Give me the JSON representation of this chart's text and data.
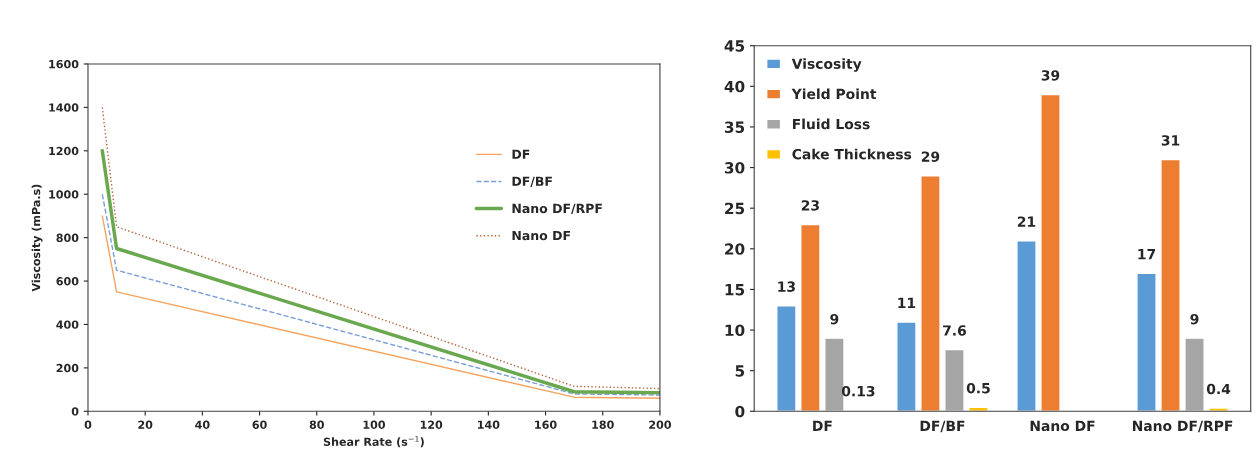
{
  "chart_data": [
    {
      "type": "line",
      "xlabel": "Shear Rate (s$^{−1}$)",
      "ylabel": "Viscosity (mPa.s)",
      "x": [
        5,
        10,
        170,
        200
      ],
      "series": [
        {
          "name": "DF",
          "color": "#f4a460",
          "values": [
            900,
            550,
            65,
            60
          ],
          "line_style": "solid"
        },
        {
          "name": "DF/BF",
          "color": "#7a9fd8",
          "values": [
            1000,
            650,
            80,
            75
          ],
          "line_style": "dashed"
        },
        {
          "name": "Nano DF/RPF",
          "color": "#6aa84f",
          "values": [
            1200,
            750,
            90,
            85
          ],
          "line_style": "solid"
        },
        {
          "name": "Nano DF",
          "color": "#b5653a",
          "values": [
            1400,
            850,
            115,
            105
          ],
          "line_style": "dotted"
        }
      ],
      "xlim": [
        0,
        200
      ],
      "xticks": [
        0,
        20,
        40,
        60,
        80,
        100,
        120,
        140,
        160,
        180,
        200
      ],
      "ylim": [
        0,
        1600
      ],
      "yticks": [
        0,
        200,
        400,
        600,
        800,
        1000,
        1200,
        1400,
        1600
      ],
      "grid": false,
      "legend": "right",
      "marker": "none"
    },
    {
      "type": "bar",
      "categories": [
        "DF",
        "DF/BF",
        "Nano DF",
        "Nano DF/RPF"
      ],
      "series": [
        {
          "name": "Viscosity",
          "color": "#5b9bd5",
          "values": [
            13,
            11,
            21,
            17
          ]
        },
        {
          "name": "Yield Point",
          "color": "#ed7d31",
          "values": [
            23,
            29,
            39,
            31
          ]
        },
        {
          "name": "Fluid Loss",
          "color": "#a5a5a5",
          "values": [
            9,
            7.6,
            null,
            9
          ]
        },
        {
          "name": "Cake Thickness",
          "color": "#ffc000",
          "values": [
            0.13,
            0.5,
            null,
            0.4
          ]
        }
      ],
      "ylim": [
        0,
        45
      ],
      "yticks": [
        0,
        5,
        10,
        15,
        20,
        25,
        30,
        35,
        40,
        45
      ],
      "grid": false,
      "legend": "top left",
      "data_labels": true
    }
  ]
}
